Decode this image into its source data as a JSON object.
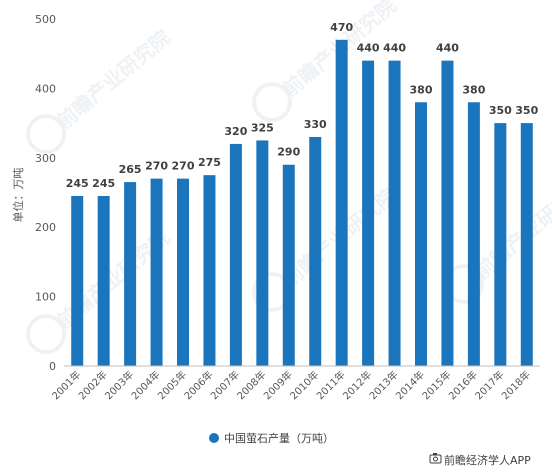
{
  "chart_data": {
    "type": "bar",
    "categories": [
      "2001年",
      "2002年",
      "2003年",
      "2004年",
      "2005年",
      "2006年",
      "2007年",
      "2008年",
      "2009年",
      "2010年",
      "2011年",
      "2012年",
      "2013年",
      "2014年",
      "2015年",
      "2016年",
      "2017年",
      "2018年"
    ],
    "series": [
      {
        "name": "中国萤石产量（万吨）",
        "values": [
          245,
          245,
          265,
          270,
          270,
          275,
          320,
          325,
          290,
          330,
          470,
          440,
          440,
          380,
          440,
          380,
          350,
          350
        ]
      }
    ],
    "ylabel": "单位：万吨",
    "ylim": [
      0,
      500
    ],
    "yticks": [
      0,
      100,
      200,
      300,
      400,
      500
    ],
    "grid": false,
    "legend": "bottom",
    "bar_color": "#1b75bc"
  },
  "watermark": "前瞻产业研究院",
  "credit": {
    "icon": "camera-icon",
    "text": "前瞻经济学人APP"
  }
}
